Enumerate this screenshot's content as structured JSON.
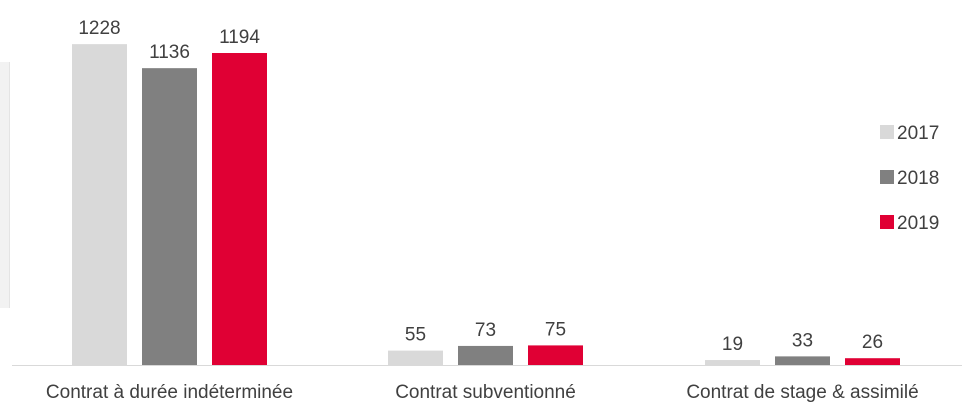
{
  "chart_data": {
    "type": "bar",
    "categories": [
      "Contrat à durée indéterminée",
      "Contrat subventionné",
      "Contrat de stage & assimilé"
    ],
    "series": [
      {
        "name": "2017",
        "values": [
          1228,
          55,
          19
        ],
        "color": "#d9d9d9"
      },
      {
        "name": "2018",
        "values": [
          1136,
          73,
          33
        ],
        "color": "#808080"
      },
      {
        "name": "2019",
        "values": [
          1194,
          75,
          26
        ],
        "color": "#e00034"
      }
    ],
    "title": "",
    "xlabel": "",
    "ylabel": "",
    "ylim": [
      0,
      1300
    ],
    "grid": false,
    "legend": "right",
    "data_labels": true
  }
}
